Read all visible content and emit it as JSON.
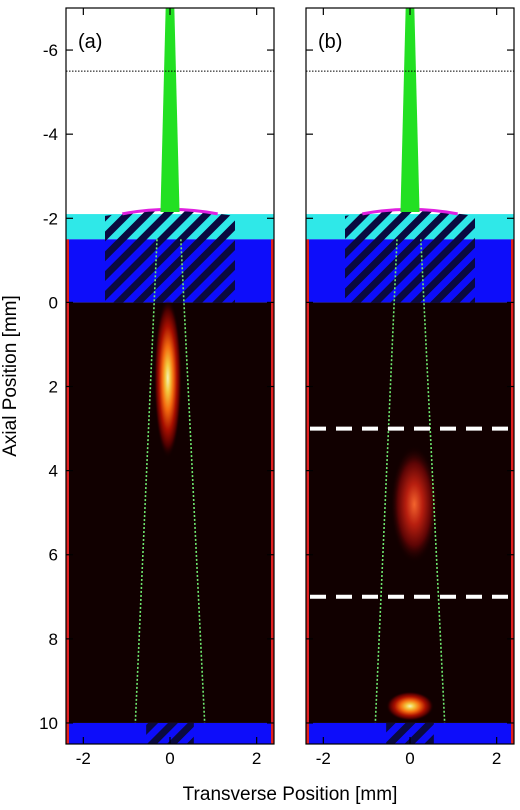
{
  "figure": {
    "xlabel": "Transverse Position [mm]",
    "ylabel": "Axial Position [mm]",
    "xlim": [
      -2.4,
      2.4
    ],
    "ylim": [
      -7,
      10.5
    ],
    "x_ticks": [
      -2,
      0,
      2
    ],
    "y_ticks": [
      -6,
      -4,
      -2,
      0,
      2,
      4,
      6,
      8,
      10
    ],
    "colors": {
      "beam": "#22e022",
      "window_glass": "#2fe8e8",
      "cell_wall": "#0d0dfa",
      "lens": "#e020e0",
      "cuvette_edge": "#e02020",
      "background_dark": "#110000",
      "cone_lines": "#6fe86f",
      "marker_lines": "#ffffff",
      "hatch": "#0a0a40"
    }
  },
  "panels": [
    {
      "label": "(a)",
      "name": "panel-a",
      "reference_line_y": -5.5,
      "beam_waist_x": 0.0,
      "cone_top": [
        -0.3,
        0.25
      ],
      "cone_bottom": [
        -0.8,
        0.8
      ],
      "glow": [
        {
          "x": -0.05,
          "y": 1.8,
          "rx": 0.32,
          "ry": 1.9,
          "intensity": 1.0
        }
      ],
      "dashed_lines_y": []
    },
    {
      "label": "(b)",
      "name": "panel-b",
      "reference_line_y": -5.5,
      "beam_waist_x": 0.0,
      "cone_top": [
        -0.3,
        0.25
      ],
      "cone_bottom": [
        -0.8,
        0.8
      ],
      "glow": [
        {
          "x": 0.1,
          "y": 4.8,
          "rx": 0.55,
          "ry": 1.4,
          "intensity": 0.55
        },
        {
          "x": 0.0,
          "y": 9.6,
          "rx": 0.55,
          "ry": 0.35,
          "intensity": 1.0
        }
      ],
      "dashed_lines_y": [
        3.0,
        7.0
      ]
    }
  ]
}
